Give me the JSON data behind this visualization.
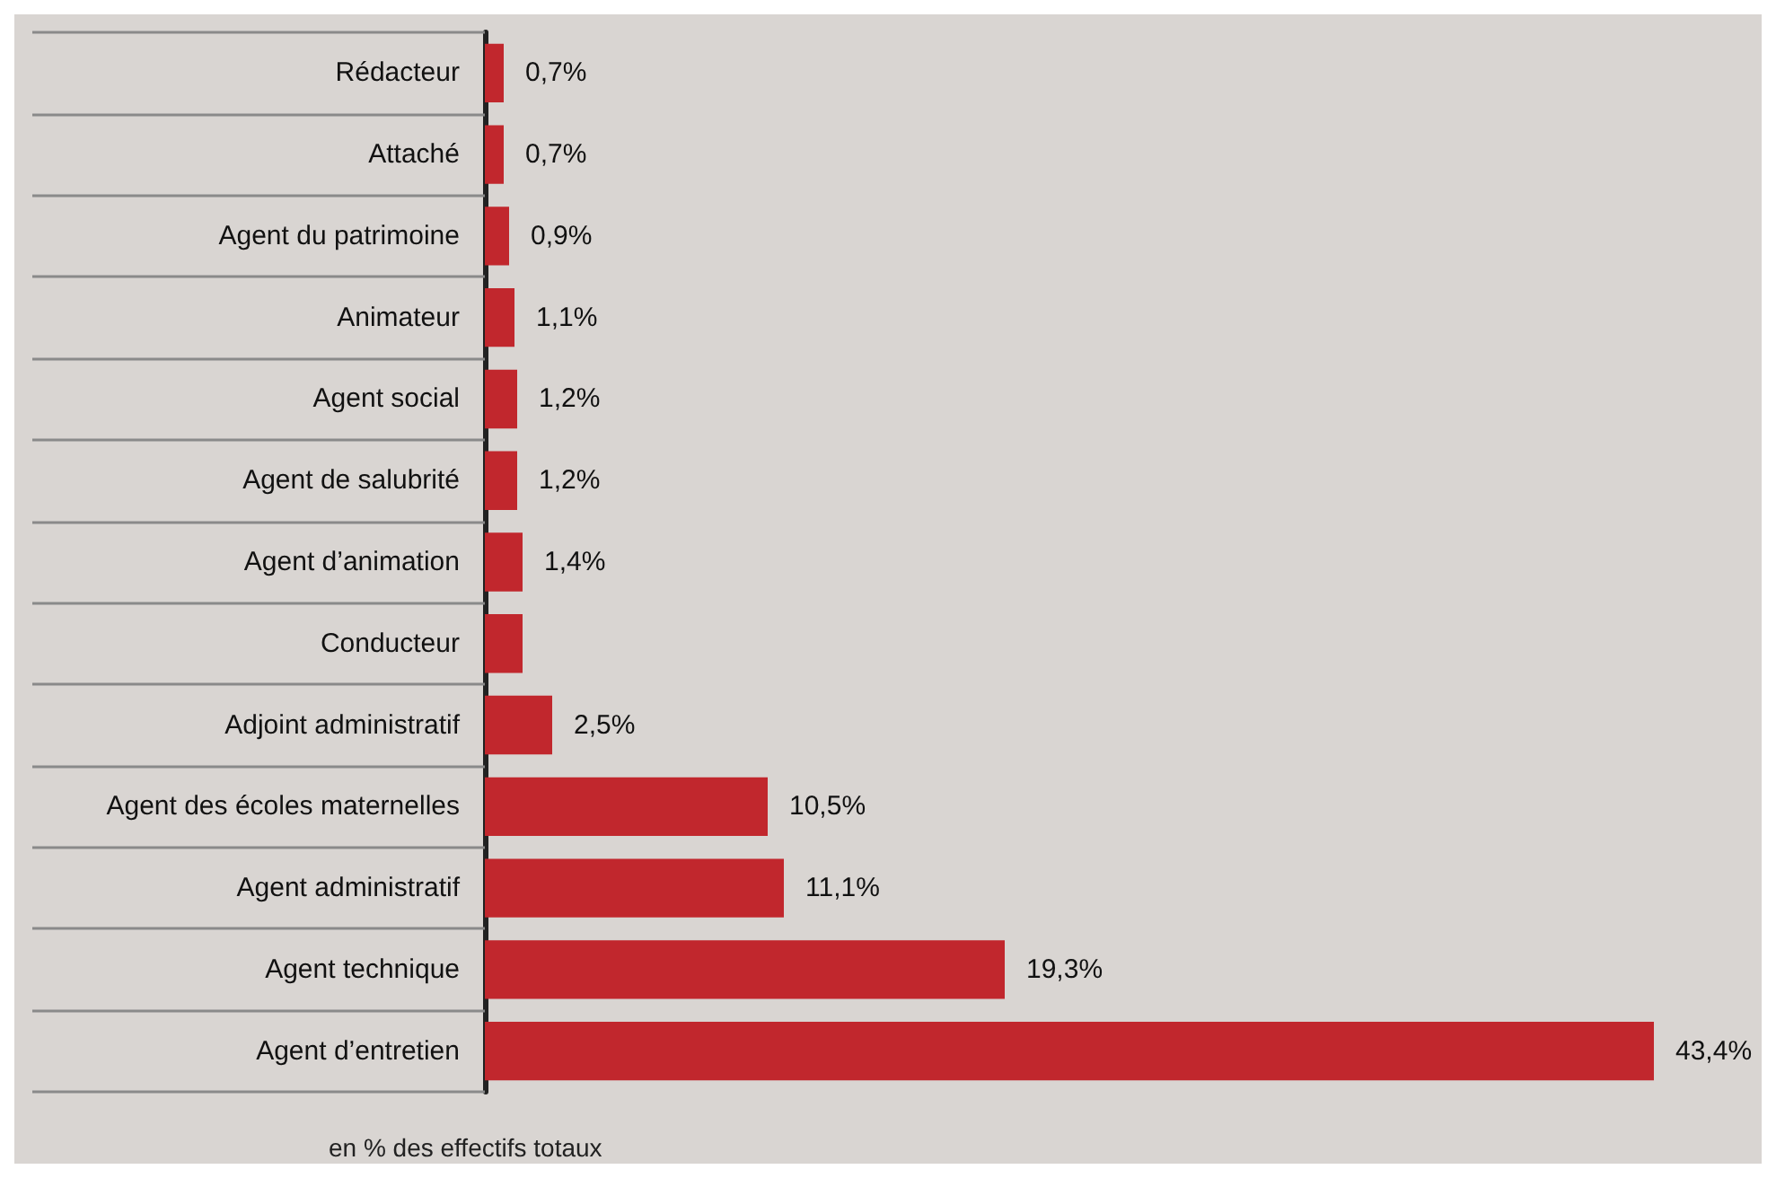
{
  "chart_data": {
    "type": "bar",
    "orientation": "horizontal",
    "categories": [
      "Rédacteur",
      "Attaché",
      "Agent du patrimoine",
      "Animateur",
      "Agent social",
      "Agent de salubrité",
      "Agent d’animation",
      "Conducteur",
      "Adjoint administratif",
      "Agent des écoles maternelles",
      "Agent administratif",
      "Agent technique",
      "Agent d’entretien"
    ],
    "values": [
      0.7,
      0.7,
      0.9,
      1.1,
      1.2,
      1.2,
      1.4,
      1.4,
      2.5,
      10.5,
      11.1,
      19.3,
      43.4
    ],
    "value_labels": [
      "0,7%",
      "0,7%",
      "0,9%",
      "1,1%",
      "1,2%",
      "1,2%",
      "1,4%",
      null,
      "2,5%",
      "10,5%",
      "11,1%",
      "19,3%",
      "43,4%"
    ],
    "color": "#c1272d",
    "annotations": [
      "en % des effectifs totaux"
    ]
  }
}
